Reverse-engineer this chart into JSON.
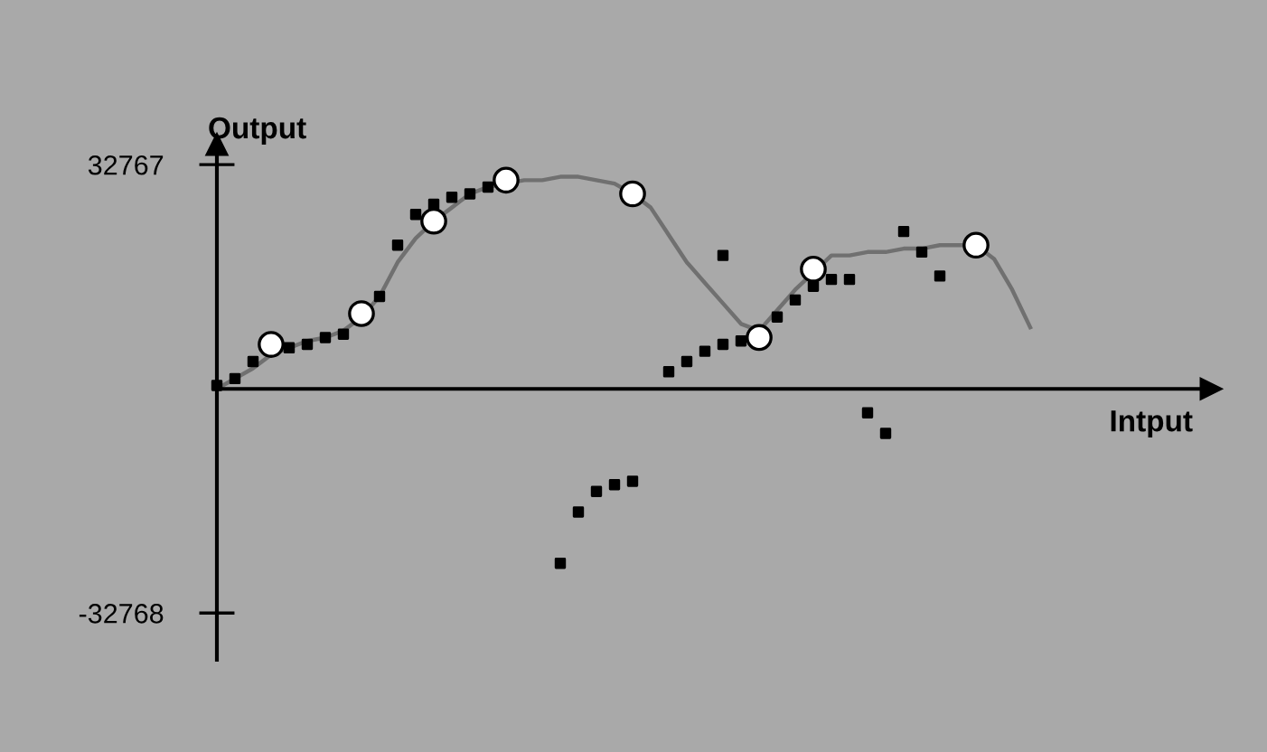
{
  "chart_data": {
    "type": "scatter",
    "xlabel": "Intput",
    "ylabel": "Output",
    "categories": [
      null,
      null,
      null,
      null,
      null,
      null,
      null,
      null,
      null,
      null,
      null,
      null,
      null,
      null,
      null,
      null,
      null,
      null,
      null,
      null,
      null,
      null,
      null,
      null,
      null,
      null,
      null,
      null,
      null,
      null,
      null,
      null,
      null,
      null,
      null,
      null,
      null,
      null,
      null,
      null,
      null,
      null,
      null,
      null,
      null,
      null,
      null,
      null,
      null,
      null,
      null,
      null,
      null,
      null
    ],
    "ylim": [
      -39600,
      35700
    ],
    "yticks": [
      -32768,
      32767
    ],
    "tick_labels": "y",
    "series": [
      {
        "type": "line",
        "color": "#707070",
        "marker": "none",
        "line_style": "solid",
        "values": [
          0,
          1500,
          3000,
          5000,
          6000,
          7000,
          7500,
          8500,
          10500,
          13500,
          18500,
          22000,
          24500,
          26500,
          28500,
          29500,
          30000,
          30500,
          30500,
          31000,
          31000,
          30500,
          30000,
          28500,
          26500,
          22500,
          18500,
          15500,
          12500,
          9500,
          8500,
          11500,
          14500,
          17000,
          19500,
          19500,
          20000,
          20000,
          20500,
          20500,
          21000,
          21000,
          21000,
          19000,
          14500,
          9000,
          null,
          null,
          null,
          null,
          null,
          null,
          null,
          null
        ]
      },
      {
        "color": "#000000",
        "marker": "square",
        "values": [
          500,
          1500,
          4000,
          null,
          6000,
          6500,
          7500,
          8000,
          null,
          13500,
          21000,
          25500,
          27000,
          28000,
          28500,
          29500,
          null,
          null,
          null,
          -25500,
          -18000,
          -15000,
          -14000,
          -13500,
          null,
          2500,
          4000,
          5500,
          6500,
          7000,
          null,
          10500,
          13000,
          15000,
          16000,
          16000,
          null,
          null,
          null,
          null,
          null,
          null,
          null,
          null,
          null,
          null,
          null,
          null,
          null,
          null,
          null,
          null,
          null,
          null
        ]
      },
      {
        "color": "#000000",
        "marker": "square",
        "values": [
          null,
          null,
          null,
          null,
          null,
          null,
          null,
          null,
          null,
          null,
          null,
          null,
          null,
          null,
          null,
          null,
          null,
          null,
          null,
          null,
          null,
          null,
          null,
          null,
          null,
          null,
          null,
          null,
          19500,
          null,
          null,
          null,
          null,
          null,
          null,
          null,
          -3500,
          -6500,
          23000,
          20000,
          16500,
          null,
          null,
          null,
          null,
          null,
          null,
          null,
          null,
          null,
          null,
          null,
          null,
          null
        ]
      },
      {
        "color": "#ffffff",
        "marker": "circle",
        "values": [
          null,
          null,
          null,
          6500,
          null,
          null,
          null,
          null,
          11000,
          null,
          null,
          null,
          24500,
          null,
          null,
          null,
          30500,
          null,
          null,
          null,
          null,
          null,
          null,
          28500,
          null,
          null,
          null,
          null,
          null,
          null,
          7500,
          null,
          null,
          17500,
          null,
          null,
          null,
          null,
          null,
          null,
          null,
          null,
          21000,
          null,
          null,
          null,
          null,
          null,
          null,
          null,
          null,
          null,
          null,
          null
        ]
      }
    ]
  }
}
